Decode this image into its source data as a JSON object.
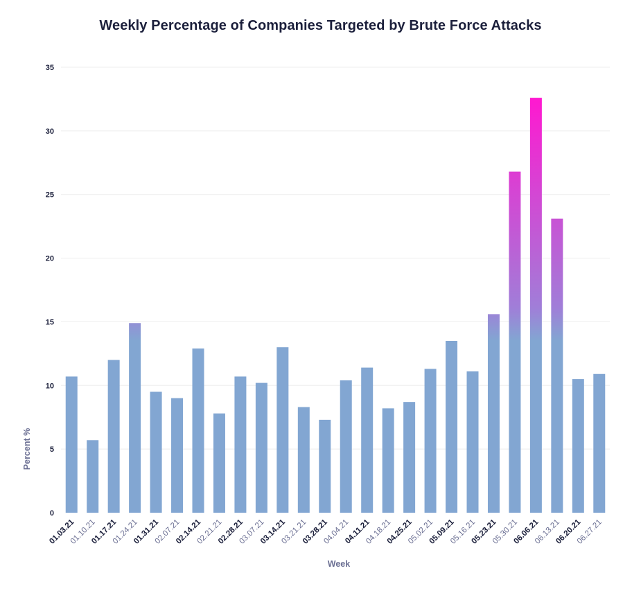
{
  "chart_data": {
    "type": "bar",
    "title": "Weekly Percentage of Companies Targeted by Brute Force Attacks",
    "xlabel": "Week",
    "ylabel": "Percent %",
    "ylim": [
      0,
      35
    ],
    "yticks": [
      0,
      5,
      10,
      15,
      20,
      25,
      30,
      35
    ],
    "grid": true,
    "categories": [
      "01.03.21",
      "01.10.21",
      "01.17.21",
      "01.24.21",
      "01.31.21",
      "02.07.21",
      "02.14.21",
      "02.21.21",
      "02.28.21",
      "03.07.21",
      "03.14.21",
      "03.21.21",
      "03.28.21",
      "04.04.21",
      "04.11.21",
      "04.18.21",
      "04.25.21",
      "05.02.21",
      "05.09.21",
      "05.16.21",
      "05.23.21",
      "05.30.21",
      "06.06.21",
      "06.13.21",
      "06.20.21",
      "06.27.21"
    ],
    "values": [
      10.7,
      5.7,
      12.0,
      14.9,
      9.5,
      9.0,
      12.9,
      7.8,
      10.7,
      10.2,
      13.0,
      8.3,
      7.3,
      10.4,
      11.4,
      8.2,
      8.7,
      11.3,
      13.5,
      11.1,
      15.6,
      26.8,
      32.6,
      23.1,
      10.5,
      10.9
    ],
    "colors": {
      "base": "#82a6d2",
      "mid": "#a07ed8",
      "peak": "#ff18d0",
      "grid": "#eeeeee",
      "text_dark": "#1b1f3b",
      "text_light": "#6b6f93"
    }
  }
}
